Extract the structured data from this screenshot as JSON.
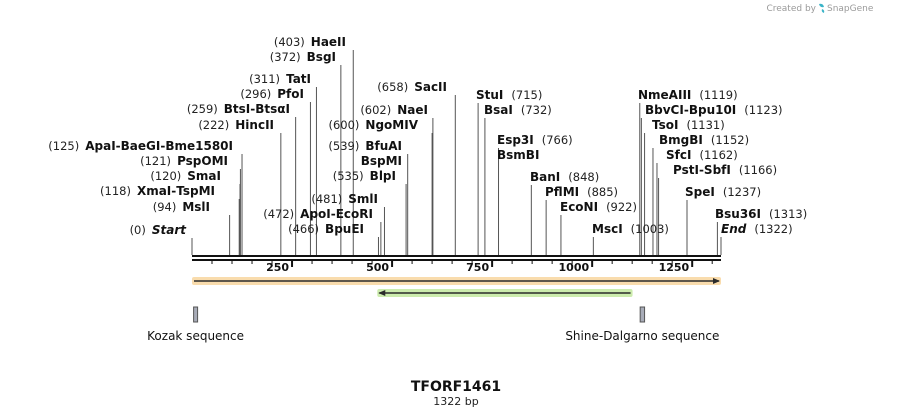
{
  "credit": {
    "text": "Created by",
    "brand": "SnapGene"
  },
  "plasmid": {
    "name": "TFORF1461",
    "length_label": "1322 bp",
    "length": 1322
  },
  "ruler": {
    "ticks": [
      250,
      500,
      750,
      1000,
      1250
    ]
  },
  "sites": [
    {
      "names": [
        "Start"
      ],
      "pos": "(0)",
      "bp": 0,
      "italic": true
    },
    {
      "names": [
        "MslI"
      ],
      "pos": "(94)",
      "bp": 94
    },
    {
      "names": [
        "XmaI",
        "TspMI"
      ],
      "pos": "(118)",
      "bp": 118
    },
    {
      "names": [
        "SmaI"
      ],
      "pos": "(120)",
      "bp": 120
    },
    {
      "names": [
        "PspOMI"
      ],
      "pos": "(121)",
      "bp": 121
    },
    {
      "names": [
        "ApaI",
        "BaeGI",
        "Bme1580I"
      ],
      "pos": "(125)",
      "bp": 125
    },
    {
      "names": [
        "HincII"
      ],
      "pos": "(222)",
      "bp": 222
    },
    {
      "names": [
        "BtsI",
        "BtsαI"
      ],
      "pos": "(259)",
      "bp": 259
    },
    {
      "names": [
        "PfoI"
      ],
      "pos": "(296)",
      "bp": 296
    },
    {
      "names": [
        "TatI"
      ],
      "pos": "(311)",
      "bp": 311
    },
    {
      "names": [
        "BsgI"
      ],
      "pos": "(372)",
      "bp": 372
    },
    {
      "names": [
        "HaeII"
      ],
      "pos": "(403)",
      "bp": 403
    },
    {
      "names": [
        "BpuEI"
      ],
      "pos": "(466)",
      "bp": 466
    },
    {
      "names": [
        "ApoI",
        "EcoRI"
      ],
      "pos": "(472)",
      "bp": 472
    },
    {
      "names": [
        "SmlI"
      ],
      "pos": "(481)",
      "bp": 481
    },
    {
      "names": [
        "BlpI"
      ],
      "pos": "(535)",
      "bp": 535
    },
    {
      "names": [
        "BfuAI",
        "BspMI"
      ],
      "pos": "(539)",
      "bp": 539
    },
    {
      "names": [
        "NgoMIV"
      ],
      "pos": "(600)",
      "bp": 600
    },
    {
      "names": [
        "NaeI"
      ],
      "pos": "(602)",
      "bp": 602
    },
    {
      "names": [
        "SacII"
      ],
      "pos": "(658)",
      "bp": 658
    },
    {
      "names": [
        "StuI"
      ],
      "pos": "(715)",
      "bp": 715
    },
    {
      "names": [
        "BsaI"
      ],
      "pos": "(732)",
      "bp": 732
    },
    {
      "names": [
        "Esp3I",
        "BsmBI"
      ],
      "pos": "(766)",
      "bp": 766
    },
    {
      "names": [
        "BanI"
      ],
      "pos": "(848)",
      "bp": 848
    },
    {
      "names": [
        "PflMI"
      ],
      "pos": "(885)",
      "bp": 885
    },
    {
      "names": [
        "EcoNI"
      ],
      "pos": "(922)",
      "bp": 922
    },
    {
      "names": [
        "MscI"
      ],
      "pos": "(1003)",
      "bp": 1003
    },
    {
      "names": [
        "NmeAIII"
      ],
      "pos": "(1119)",
      "bp": 1119
    },
    {
      "names": [
        "BbvCI",
        "Bpu10I"
      ],
      "pos": "(1123)",
      "bp": 1123
    },
    {
      "names": [
        "TsoI"
      ],
      "pos": "(1131)",
      "bp": 1131
    },
    {
      "names": [
        "BmgBI"
      ],
      "pos": "(1152)",
      "bp": 1152
    },
    {
      "names": [
        "SfcI"
      ],
      "pos": "(1162)",
      "bp": 1162
    },
    {
      "names": [
        "PstI",
        "SbfI"
      ],
      "pos": "(1166)",
      "bp": 1166
    },
    {
      "names": [
        "SpeI"
      ],
      "pos": "(1237)",
      "bp": 1237
    },
    {
      "names": [
        "Bsu36I"
      ],
      "pos": "(1313)",
      "bp": 1313
    },
    {
      "names": [
        "End"
      ],
      "pos": "(1322)",
      "bp": 1322,
      "italic": true
    }
  ],
  "features": [
    {
      "name": "Kozak sequence",
      "start": 5,
      "end": 14
    },
    {
      "name": "Shine-Dalgarno sequence",
      "start": 1121,
      "end": 1131
    }
  ],
  "orfs": [
    {
      "start": 1,
      "end": 1322,
      "direction": "forward",
      "color": "#f2b24a"
    },
    {
      "start": 464,
      "end": 1101,
      "direction": "reverse",
      "color": "#8fd44a"
    }
  ]
}
